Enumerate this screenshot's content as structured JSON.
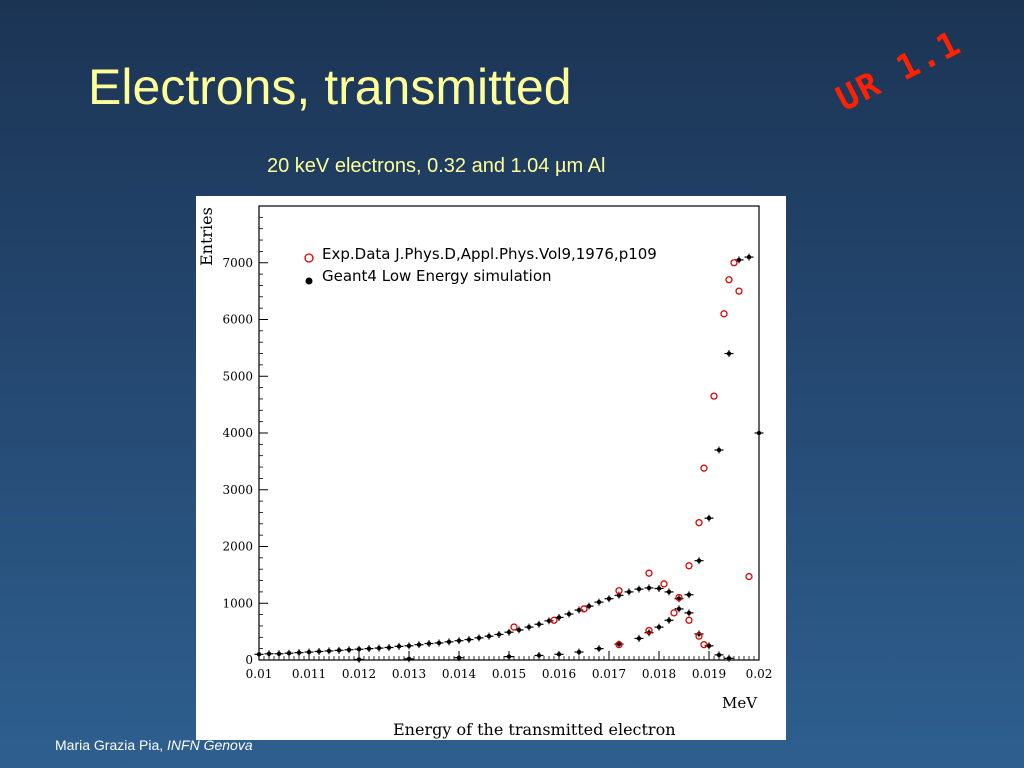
{
  "slide": {
    "title": "Electrons, transmitted",
    "stamp": "UR 1.1",
    "subtitle": "20 keV electrons, 0.32 and 1.04 µm Al",
    "footer_author": "Maria Grazia Pia, ",
    "footer_affiliation": "INFN Genova"
  },
  "colors": {
    "title": "#ffff99",
    "stamp": "#ff2200",
    "exp_marker": "#dd0000",
    "sim_marker": "#000000"
  },
  "chart_data": {
    "type": "scatter",
    "ylabel": "Entries",
    "xlabel": "Energy of the transmitted electron",
    "xunit": "MeV",
    "xlim": [
      0.01,
      0.02
    ],
    "ylim": [
      0,
      8000
    ],
    "xticks": [
      0.01,
      0.011,
      0.012,
      0.013,
      0.014,
      0.015,
      0.016,
      0.017,
      0.018,
      0.019,
      0.02
    ],
    "xtick_labels": [
      "0.01",
      "0.011",
      "0.012",
      "0.013",
      "0.014",
      "0.015",
      "0.016",
      "0.017",
      "0.018",
      "0.019",
      "0.02"
    ],
    "yticks": [
      0,
      1000,
      2000,
      3000,
      4000,
      5000,
      6000,
      7000
    ],
    "ytick_labels": [
      "0",
      "1000",
      "2000",
      "3000",
      "4000",
      "5000",
      "6000",
      "7000"
    ],
    "grid": false,
    "legend_position": "top-left",
    "series": [
      {
        "name": "Exp.Data J.Phys.D,Appl.Phys.Vol9,1976,p109",
        "marker": "open-circle",
        "points": [
          [
            0.0151,
            580
          ],
          [
            0.0159,
            700
          ],
          [
            0.0165,
            900
          ],
          [
            0.0172,
            1220
          ],
          [
            0.0178,
            1530
          ],
          [
            0.0181,
            1340
          ],
          [
            0.0184,
            1100
          ],
          [
            0.0186,
            700
          ],
          [
            0.0188,
            420
          ],
          [
            0.0189,
            270
          ],
          [
            0.0172,
            270
          ],
          [
            0.0178,
            520
          ],
          [
            0.0183,
            830
          ],
          [
            0.0186,
            1660
          ],
          [
            0.0188,
            2420
          ],
          [
            0.0189,
            3380
          ],
          [
            0.0191,
            4650
          ],
          [
            0.0193,
            6100
          ],
          [
            0.0194,
            6700
          ],
          [
            0.0195,
            7000
          ],
          [
            0.0196,
            6500
          ],
          [
            0.0198,
            1470
          ]
        ]
      },
      {
        "name": "Geant4 Low Energy simulation",
        "marker": "filled-dot",
        "points": [
          [
            0.01,
            100
          ],
          [
            0.0102,
            110
          ],
          [
            0.0104,
            110
          ],
          [
            0.0106,
            120
          ],
          [
            0.0108,
            130
          ],
          [
            0.011,
            140
          ],
          [
            0.0112,
            150
          ],
          [
            0.0114,
            160
          ],
          [
            0.0116,
            170
          ],
          [
            0.0118,
            180
          ],
          [
            0.012,
            190
          ],
          [
            0.0122,
            200
          ],
          [
            0.0124,
            210
          ],
          [
            0.0126,
            220
          ],
          [
            0.0128,
            240
          ],
          [
            0.013,
            250
          ],
          [
            0.0132,
            270
          ],
          [
            0.0134,
            290
          ],
          [
            0.0136,
            300
          ],
          [
            0.0138,
            320
          ],
          [
            0.014,
            340
          ],
          [
            0.0142,
            360
          ],
          [
            0.0144,
            390
          ],
          [
            0.0146,
            420
          ],
          [
            0.0148,
            450
          ],
          [
            0.015,
            490
          ],
          [
            0.0152,
            530
          ],
          [
            0.0154,
            580
          ],
          [
            0.0156,
            630
          ],
          [
            0.0158,
            690
          ],
          [
            0.016,
            750
          ],
          [
            0.0162,
            810
          ],
          [
            0.0164,
            880
          ],
          [
            0.0166,
            950
          ],
          [
            0.0168,
            1020
          ],
          [
            0.017,
            1080
          ],
          [
            0.0172,
            1140
          ],
          [
            0.0174,
            1200
          ],
          [
            0.0176,
            1250
          ],
          [
            0.0178,
            1270
          ],
          [
            0.018,
            1260
          ],
          [
            0.0182,
            1200
          ],
          [
            0.0184,
            1080
          ],
          [
            0.0186,
            830
          ],
          [
            0.0188,
            460
          ],
          [
            0.019,
            250
          ],
          [
            0.0192,
            90
          ],
          [
            0.0194,
            30
          ],
          [
            0.012,
            10
          ],
          [
            0.013,
            20
          ],
          [
            0.014,
            40
          ],
          [
            0.015,
            60
          ],
          [
            0.0156,
            80
          ],
          [
            0.016,
            100
          ],
          [
            0.0164,
            140
          ],
          [
            0.0168,
            200
          ],
          [
            0.0172,
            280
          ],
          [
            0.0176,
            380
          ],
          [
            0.0178,
            480
          ],
          [
            0.018,
            580
          ],
          [
            0.0182,
            700
          ],
          [
            0.0184,
            900
          ],
          [
            0.0186,
            1150
          ],
          [
            0.0188,
            1750
          ],
          [
            0.019,
            2500
          ],
          [
            0.0192,
            3700
          ],
          [
            0.0194,
            5400
          ],
          [
            0.0196,
            7050
          ],
          [
            0.0198,
            7100
          ],
          [
            0.02,
            4000
          ]
        ]
      }
    ]
  }
}
